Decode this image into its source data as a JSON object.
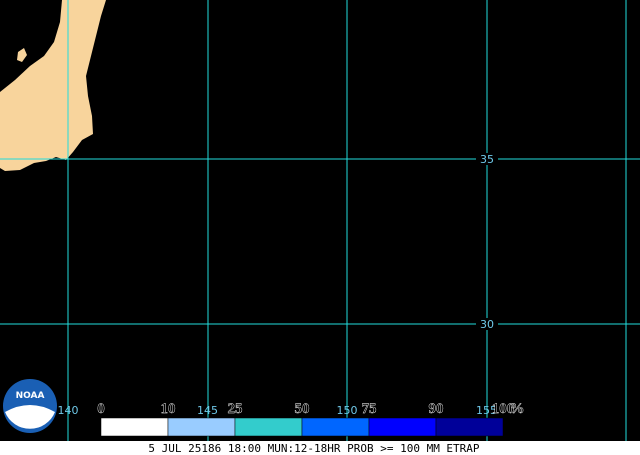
{
  "map": {
    "lat_labels": [
      {
        "text": "35",
        "lat": 35
      },
      {
        "text": "30",
        "lat": 30
      }
    ],
    "lon_labels": [
      {
        "text": "140",
        "lon": 140
      },
      {
        "text": "145",
        "lon": 145
      },
      {
        "text": "150",
        "lon": 150
      },
      {
        "text": "155",
        "lon": 155
      }
    ],
    "logo": "NOAA"
  },
  "legend": {
    "ticks": [
      "0",
      "10",
      "25",
      "50",
      "75",
      "90",
      "100"
    ],
    "unit": "%",
    "colors": [
      "#ffffff",
      "#99ccff",
      "#33cccc",
      "#0066ff",
      "#0000ff",
      "#000099"
    ]
  },
  "footer": "5 JUL 25186 18:00 MUN:12-18HR PROB >= 100 MM ETRAP"
}
